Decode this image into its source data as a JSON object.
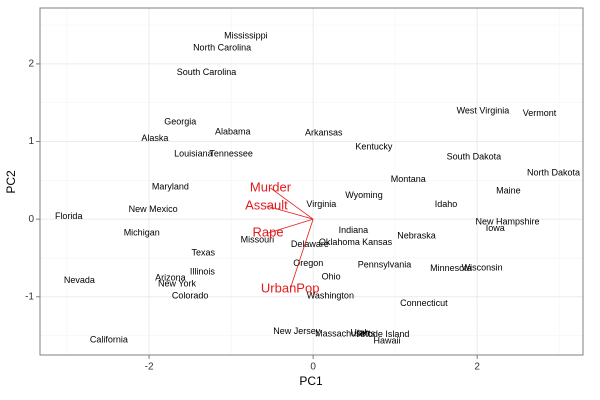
{
  "chart_data": {
    "type": "scatter",
    "x_label": "PC1",
    "y_label": "PC2",
    "xlim": [
      -3.33,
      3.29
    ],
    "ylim": [
      -1.75,
      2.72
    ],
    "xticks": [
      -2,
      0,
      2
    ],
    "yticks": [
      -1,
      0,
      1,
      2
    ],
    "grid": true,
    "labels": [
      "Mississippi",
      "North Carolina",
      "South Carolina",
      "West Virginia",
      "Vermont",
      "Georgia",
      "Alabama",
      "Arkansas",
      "Alaska",
      "Kentucky",
      "Louisiana",
      "Tennessee",
      "South Dakota",
      "North Dakota",
      "Montana",
      "Maryland",
      "Maine",
      "Wyoming",
      "Idaho",
      "Virginia",
      "New Mexico",
      "Florida",
      "New Hampshire",
      "Iowa",
      "Michigan",
      "Indiana",
      "Nebraska",
      "Missouri",
      "Oklahoma",
      "Kansas",
      "Delaware",
      "Texas",
      "Oregon",
      "Pennsylvania",
      "Minnesota",
      "Wisconsin",
      "Illinois",
      "Ohio",
      "Nevada",
      "Arizona",
      "New York",
      "Colorado",
      "Washington",
      "Connecticut",
      "New Jersey",
      "Massachusetts",
      "Utah",
      "Rhode Island",
      "Hawaii",
      "California"
    ],
    "x": [
      -0.82,
      -1.11,
      -1.3,
      2.07,
      2.76,
      -1.62,
      -0.98,
      0.13,
      -1.93,
      0.74,
      -1.46,
      -1.0,
      1.96,
      2.93,
      1.16,
      -1.74,
      2.38,
      0.62,
      1.62,
      0.1,
      -1.95,
      -2.98,
      2.37,
      2.22,
      -2.09,
      0.49,
      1.26,
      -0.68,
      0.32,
      0.78,
      -0.04,
      -1.34,
      -0.06,
      0.87,
      1.68,
      2.06,
      -1.35,
      0.22,
      -2.85,
      -1.74,
      -1.66,
      -1.5,
      0.21,
      1.35,
      -0.2,
      0.39,
      0.57,
      0.85,
      0.9,
      -2.49
    ],
    "values": [
      2.36,
      2.2,
      1.89,
      1.39,
      1.36,
      1.25,
      1.12,
      1.11,
      1.04,
      0.93,
      0.84,
      0.84,
      0.8,
      0.59,
      0.51,
      0.41,
      0.36,
      0.3,
      0.19,
      0.19,
      0.12,
      0.03,
      -0.04,
      -0.12,
      -0.18,
      -0.15,
      -0.22,
      -0.27,
      -0.3,
      -0.3,
      -0.33,
      -0.44,
      -0.57,
      -0.59,
      -0.64,
      -0.63,
      -0.68,
      -0.75,
      -0.79,
      -0.76,
      -0.84,
      -0.99,
      -0.99,
      -1.09,
      -1.45,
      -1.48,
      -1.47,
      -1.49,
      -1.57,
      -1.56
    ],
    "arrows": {
      "labels": [
        "Murder",
        "Assault",
        "Rape",
        "UrbanPop"
      ],
      "x": [
        -0.52,
        -0.57,
        -0.55,
        -0.28
      ],
      "y": [
        0.4,
        0.17,
        -0.18,
        -0.9
      ],
      "color": "#e41a1c"
    }
  }
}
